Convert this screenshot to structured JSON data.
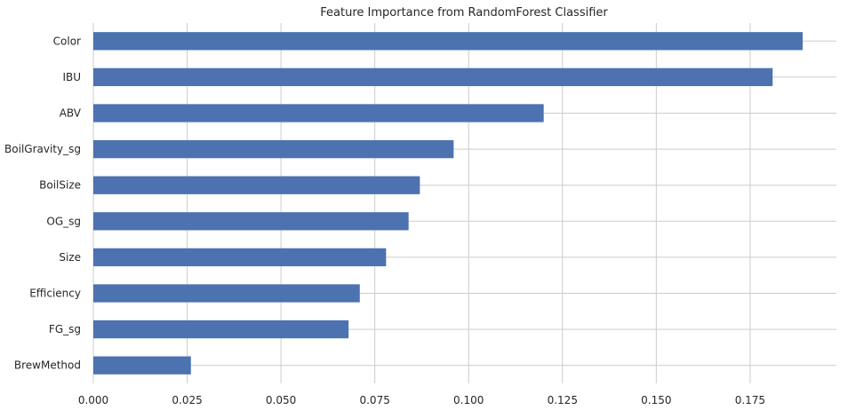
{
  "chart_data": {
    "type": "bar",
    "orientation": "horizontal",
    "title": "Feature Importance from RandomForest Classifier",
    "xlabel": "",
    "ylabel": "",
    "xlim": [
      0,
      0.198
    ],
    "xticks": [
      0.0,
      0.025,
      0.05,
      0.075,
      0.1,
      0.125,
      0.15,
      0.175
    ],
    "xtick_labels": [
      "0.000",
      "0.025",
      "0.050",
      "0.075",
      "0.100",
      "0.125",
      "0.150",
      "0.175"
    ],
    "categories": [
      "Color",
      "IBU",
      "ABV",
      "BoilGravity_sg",
      "BoilSize",
      "OG_sg",
      "Size",
      "Efficiency",
      "FG_sg",
      "BrewMethod"
    ],
    "values": [
      0.189,
      0.181,
      0.12,
      0.096,
      0.087,
      0.084,
      0.078,
      0.071,
      0.068,
      0.026
    ],
    "grid": true,
    "legend": "none",
    "colors": {
      "bar": "#4c72b0",
      "grid": "#cccccc",
      "text": "#262626",
      "background": "#ffffff"
    }
  }
}
